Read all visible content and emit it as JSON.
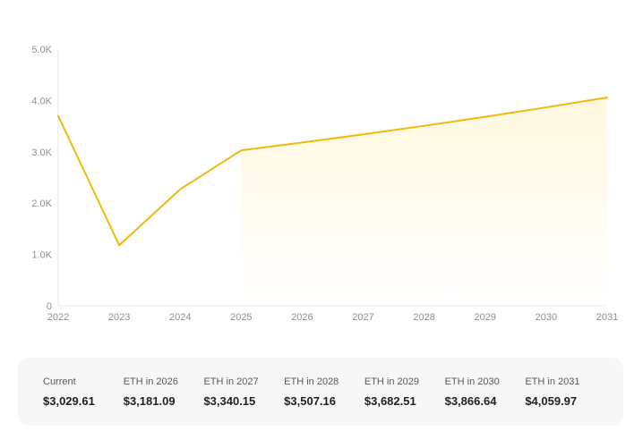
{
  "chart_data": {
    "type": "line",
    "x": [
      "2022",
      "2023",
      "2024",
      "2025",
      "2026",
      "2027",
      "2028",
      "2029",
      "2030",
      "2031"
    ],
    "series": [
      {
        "values": [
          3700,
          1180,
          2270,
          3029.61,
          3181.09,
          3340.15,
          3507.16,
          3682.51,
          3866.64,
          4059.97
        ]
      }
    ],
    "yticks": [
      0,
      1000,
      2000,
      3000,
      4000,
      5000
    ],
    "ytick_labels": [
      "0",
      "1.0K",
      "2.0K",
      "3.0K",
      "4.0K",
      "5.0K"
    ],
    "ylim": [
      0,
      5000
    ],
    "forecast_shaded_from": "2025",
    "grid": false,
    "line_color": "#f0b90b",
    "fill_color": "#fcd535"
  },
  "summary": [
    {
      "label": "Current",
      "value": "$3,029.61"
    },
    {
      "label": "ETH in 2026",
      "value": "$3,181.09"
    },
    {
      "label": "ETH in 2027",
      "value": "$3,340.15"
    },
    {
      "label": "ETH in 2028",
      "value": "$3,507.16"
    },
    {
      "label": "ETH in 2029",
      "value": "$3,682.51"
    },
    {
      "label": "ETH in 2030",
      "value": "$3,866.64"
    },
    {
      "label": "ETH in 2031",
      "value": "$4,059.97"
    }
  ]
}
